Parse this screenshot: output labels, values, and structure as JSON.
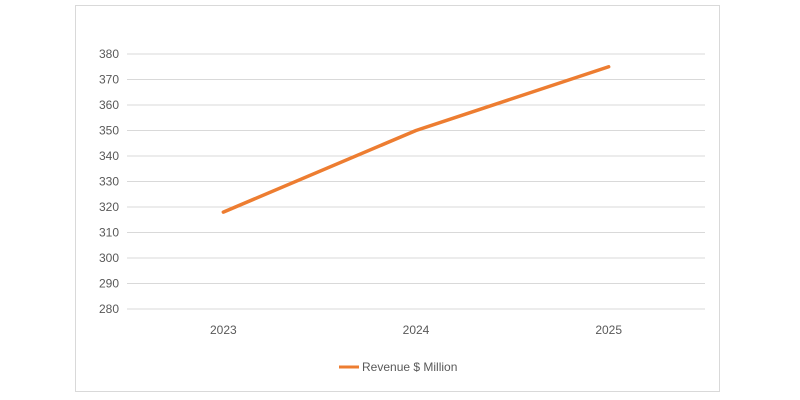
{
  "chart_data": {
    "type": "line",
    "title": "",
    "xlabel": "",
    "ylabel": "",
    "categories": [
      "2023",
      "2024",
      "2025"
    ],
    "series": [
      {
        "name": "Revenue $ Million",
        "values": [
          318,
          350,
          375
        ],
        "color": "#ED7D31"
      }
    ],
    "ylim": [
      280,
      380
    ],
    "yticks": [
      280,
      290,
      300,
      310,
      320,
      330,
      340,
      350,
      360,
      370,
      380
    ],
    "grid": true,
    "legend_position": "bottom"
  }
}
